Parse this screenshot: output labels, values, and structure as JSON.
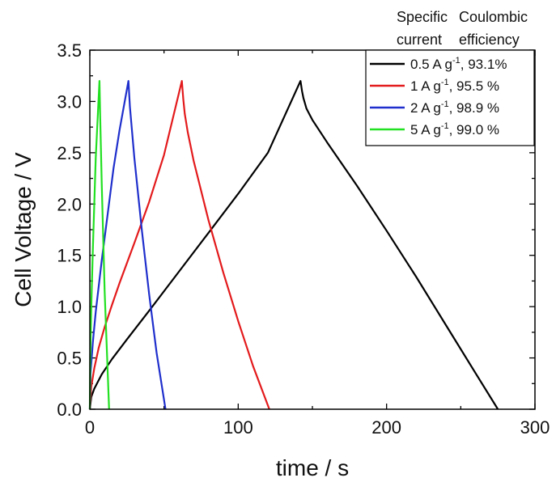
{
  "chart_data": {
    "type": "line",
    "xlabel": "time / s",
    "ylabel": "Cell Voltage / V",
    "xlim": [
      0,
      300
    ],
    "ylim": [
      0,
      3.5
    ],
    "xticks": [
      0,
      100,
      200,
      300
    ],
    "xtick_labels": [
      "0",
      "100",
      "200",
      "300"
    ],
    "yticks": [
      0,
      0.5,
      1.0,
      1.5,
      2.0,
      2.5,
      3.0,
      3.5
    ],
    "ytick_labels": [
      "0.0",
      "0.5",
      "1.0",
      "1.5",
      "2.0",
      "2.5",
      "3.0",
      "3.5"
    ],
    "legend_position": "top-right",
    "legend_header": [
      "Specific",
      "current",
      "Coulombic",
      "efficiency"
    ],
    "series": [
      {
        "name": "0.5 A g-1, 93.1%",
        "label_pre": "0.5 A g",
        "label_sup": "-1",
        "label_post": ", 93.1%",
        "color": "#000000",
        "x": [
          0,
          1,
          3,
          8,
          15,
          25,
          40,
          60,
          80,
          100,
          120,
          142,
          143,
          144,
          146,
          150,
          160,
          180,
          200,
          220,
          240,
          260,
          275
        ],
        "y": [
          0,
          0.12,
          0.2,
          0.34,
          0.49,
          0.68,
          0.96,
          1.34,
          1.72,
          2.1,
          2.5,
          3.2,
          3.1,
          3.03,
          2.93,
          2.82,
          2.6,
          2.18,
          1.74,
          1.29,
          0.82,
          0.35,
          0.0
        ]
      },
      {
        "name": "1 A g-1, 95.5 %",
        "label_pre": "1 A g",
        "label_sup": "-1",
        "label_post": ", 95.5 %",
        "color": "#e31a1c",
        "x": [
          0,
          1,
          3,
          6,
          10,
          15,
          20,
          30,
          40,
          50,
          62,
          63,
          64,
          66,
          70,
          80,
          90,
          100,
          110,
          121
        ],
        "y": [
          0,
          0.22,
          0.4,
          0.6,
          0.8,
          1.02,
          1.23,
          1.62,
          2.02,
          2.48,
          3.2,
          3.02,
          2.88,
          2.7,
          2.42,
          1.84,
          1.33,
          0.86,
          0.42,
          0.0
        ]
      },
      {
        "name": "2 A g-1, 98.9 %",
        "label_pre": "2 A g",
        "label_sup": "-1",
        "label_post": ", 98.9 %",
        "color": "#1f2fcc",
        "x": [
          0,
          0.5,
          2,
          4,
          8,
          12,
          16,
          20,
          26,
          27,
          30,
          35,
          40,
          45,
          51
        ],
        "y": [
          0,
          0.35,
          0.65,
          0.95,
          1.45,
          1.9,
          2.35,
          2.72,
          3.2,
          2.95,
          2.45,
          1.75,
          1.12,
          0.55,
          0.0
        ]
      },
      {
        "name": "5 A g-1, 99.0 %",
        "label_pre": "5 A g",
        "label_sup": "-1",
        "label_post": ", 99.0 %",
        "color": "#22e022",
        "x": [
          0,
          0.3,
          1,
          2,
          4,
          6.5,
          7,
          8,
          10,
          13
        ],
        "y": [
          0,
          0.5,
          1.0,
          1.55,
          2.45,
          3.2,
          2.85,
          2.2,
          1.15,
          0.0
        ]
      }
    ]
  }
}
